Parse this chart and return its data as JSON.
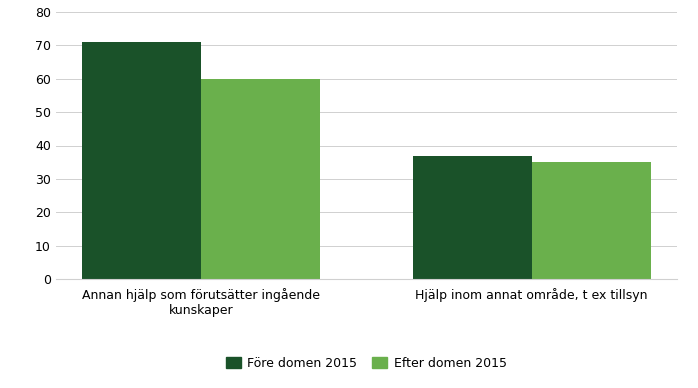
{
  "groups": [
    "Annan hjälp som förutsätter ingående\nkunskaper",
    "Hjälp inom annat område, t ex tillsyn"
  ],
  "series": [
    {
      "label": "Före domen 2015",
      "color": "#1a5229",
      "values": [
        71,
        37
      ]
    },
    {
      "label": "Efter domen 2015",
      "color": "#6ab04c",
      "values": [
        60,
        35
      ]
    }
  ],
  "ylim": [
    0,
    80
  ],
  "yticks": [
    0,
    10,
    20,
    30,
    40,
    50,
    60,
    70,
    80
  ],
  "bar_width": 0.18,
  "group_centers": [
    0.22,
    0.72
  ],
  "background_color": "#ffffff",
  "grid_color": "#d0d0d0",
  "legend_fontsize": 9,
  "tick_fontsize": 9,
  "xticklabel_fontsize": 9
}
